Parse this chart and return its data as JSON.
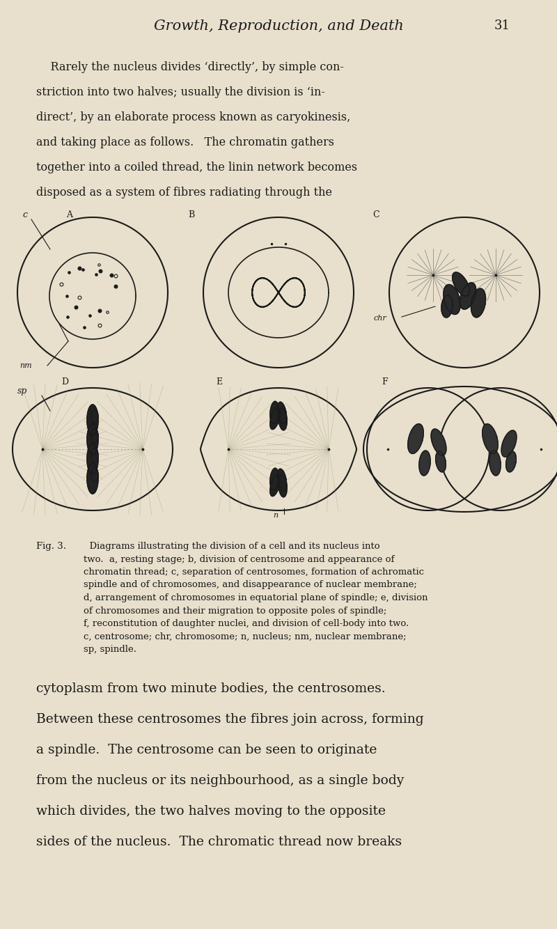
{
  "bg_color": "#e8e0cc",
  "text_color": "#1a1a1a",
  "page_width": 8.0,
  "page_height": 13.34,
  "header_title": "Growth, Reproduction, and Death",
  "header_page": "31",
  "top_para_lines": [
    "    Rarely the nucleus divides ‘directly’, by simple con-",
    "striction into two halves; usually the division is ‘in-",
    "direct’, by an elaborate process known as caryokinesis,",
    "and taking place as follows.   The chromatin gathers",
    "together into a coiled thread, the linin network becomes",
    "disposed as a system of fibres radiating through the"
  ],
  "cap_bold": "Fig. 3.",
  "cap_rest": "  Diagrams illustrating the division of a cell and its nucleus into\ntwo.  a, resting stage; b, division of centrosome and appearance of\nchromatin thread; c, separation of centrosomes, formation of achromatic\nspindle and of chromosomes, and disappearance of nuclear membrane;\nd, arrangement of chromosomes in equatorial plane of spindle; e, division\nof chromosomes and their migration to opposite poles of spindle;\nf, reconstitution of daughter nuclei, and division of cell-body into two.\nc, centrosome; chr, chromosome; n, nucleus; nm, nuclear membrane;\nsp, spindle.",
  "bottom_lines": [
    "cytoplasm from two minute bodies, the centrosomes.",
    "Between these centrosomes the fibres join across, forming",
    "a spindle.  The centrosome can be seen to originate",
    "from the nucleus or its neighbourhood, as a single body",
    "which divides, the two halves moving to the opposite",
    "sides of the nucleus.  The chromatic thread now breaks"
  ]
}
